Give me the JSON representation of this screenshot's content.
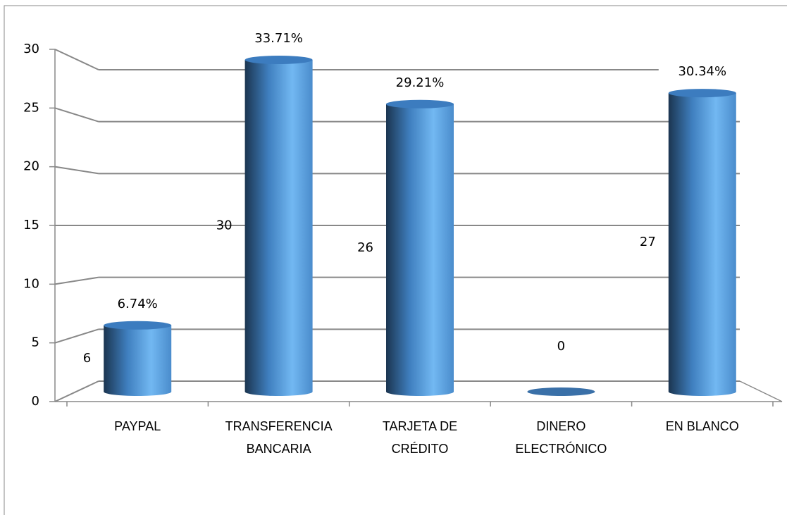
{
  "chart_data": {
    "type": "bar",
    "categories": [
      [
        "PAYPAL"
      ],
      [
        "TRANSFERENCIA",
        "BANCARIA"
      ],
      [
        "TARJETA DE",
        "CRÉDITO"
      ],
      [
        "DINERO",
        "ELECTRÓNICO"
      ],
      [
        "EN BLANCO"
      ]
    ],
    "values": [
      6,
      30,
      26,
      0,
      27
    ],
    "percent_labels": [
      "6.74%",
      "33.71%",
      "29.21%",
      null,
      "30.34%"
    ],
    "color": "#5fa8e8",
    "ylim": [
      0,
      30
    ],
    "yticks": [
      0,
      5,
      10,
      15,
      20,
      25,
      30
    ],
    "grid": true
  }
}
